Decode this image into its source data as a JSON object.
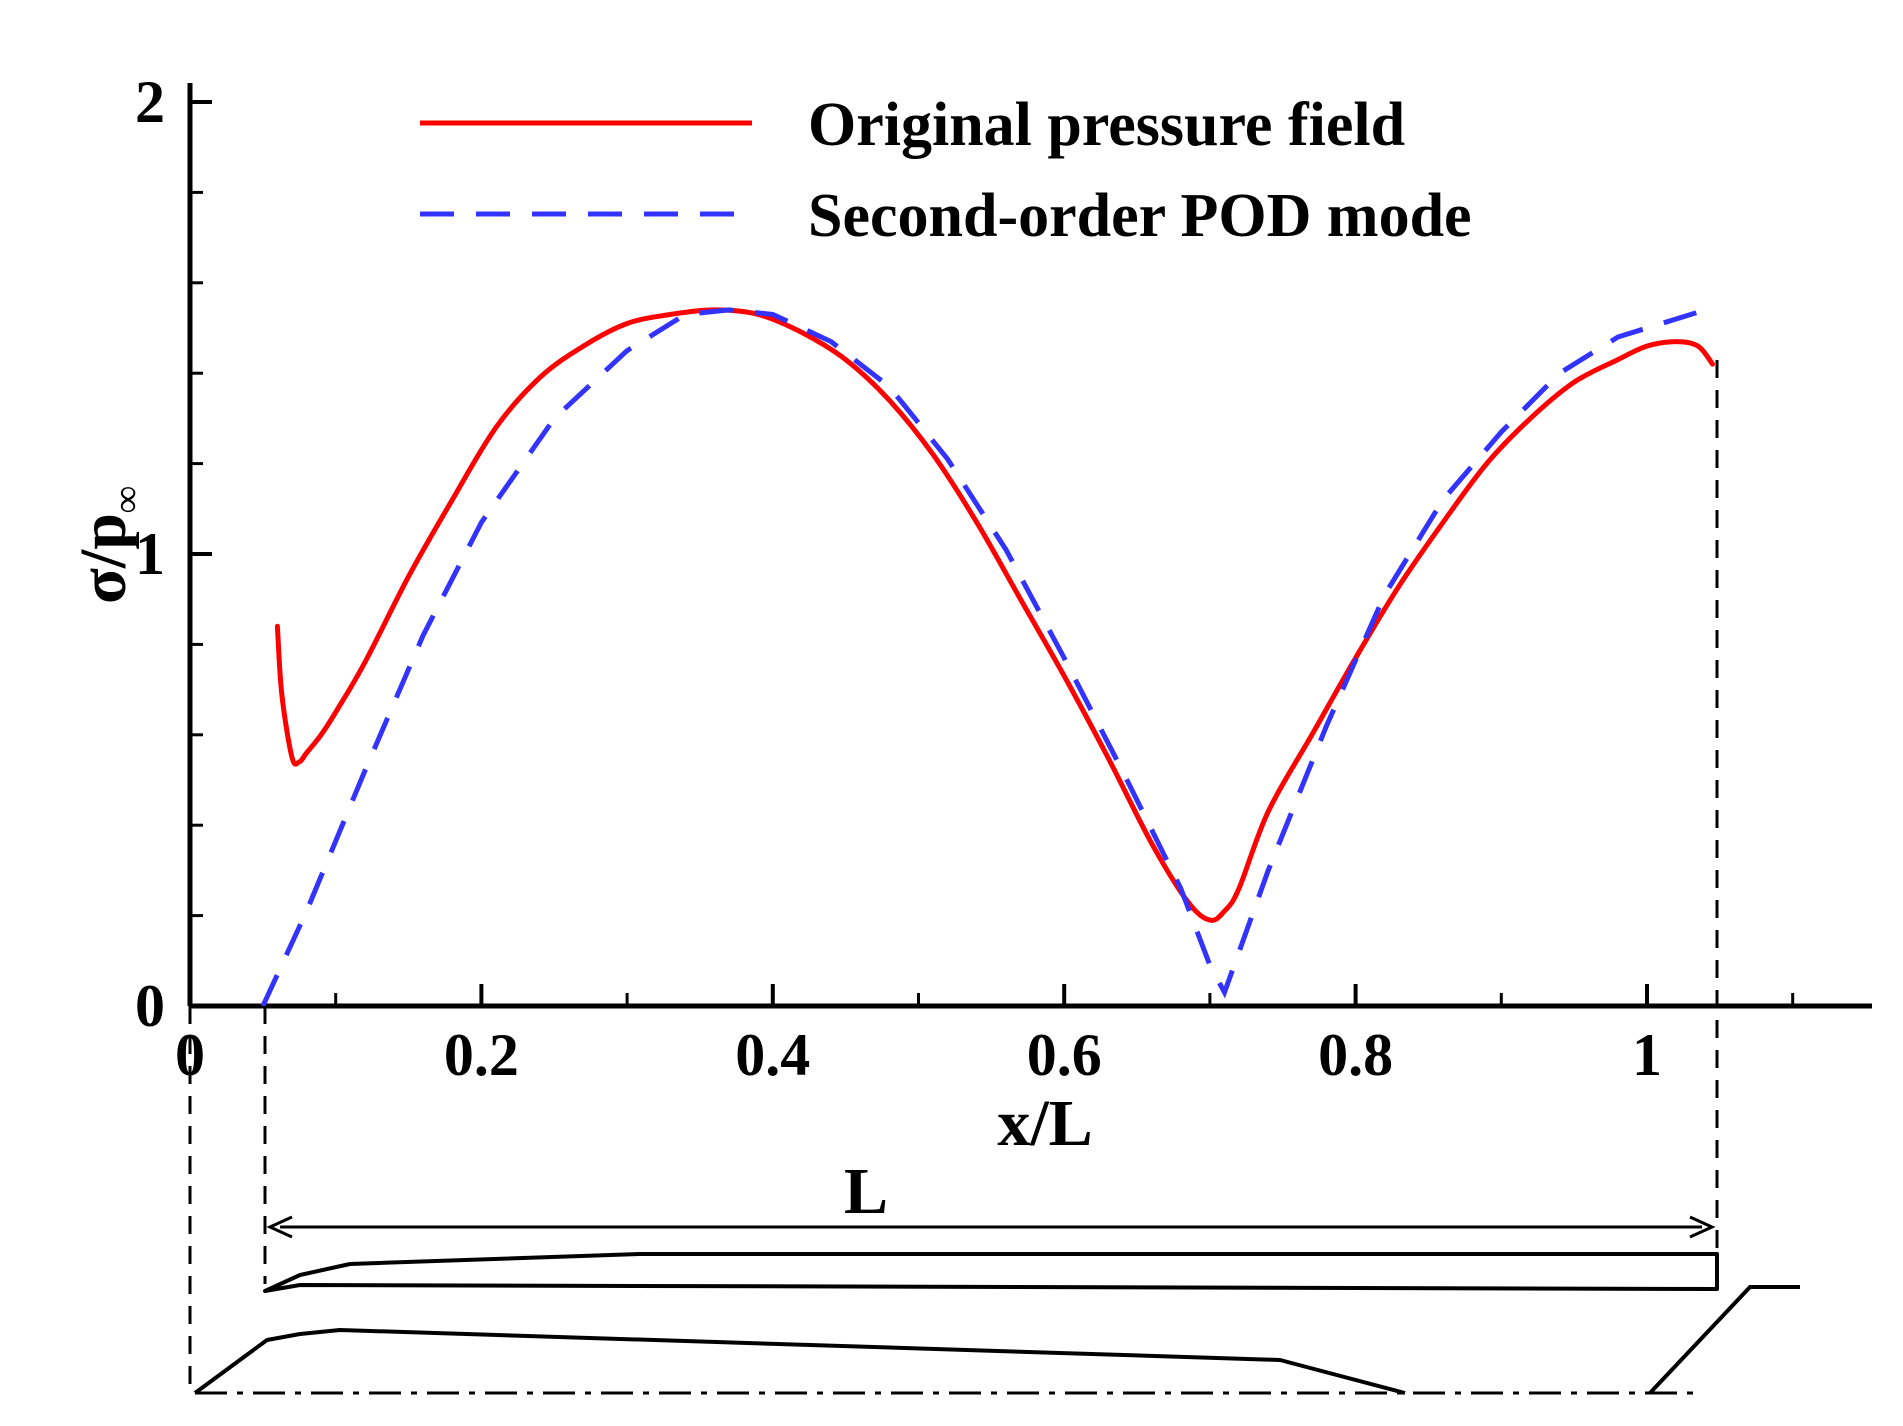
{
  "chart_data": {
    "type": "line",
    "title": "",
    "xlabel": "x/L",
    "ylabel_main": "σ/p",
    "ylabel_sub": "∞",
    "xlim": [
      0,
      1.16
    ],
    "ylim": [
      0,
      2
    ],
    "x_ticks": [
      {
        "value": 0,
        "label": "0"
      },
      {
        "value": 0.2,
        "label": "0.2"
      },
      {
        "value": 0.4,
        "label": "0.4"
      },
      {
        "value": 0.6,
        "label": "0.6"
      },
      {
        "value": 0.8,
        "label": "0.8"
      },
      {
        "value": 1,
        "label": "1"
      }
    ],
    "x_minor_ticks": [
      0.1,
      0.3,
      0.5,
      0.7,
      0.9,
      1.1
    ],
    "y_ticks": [
      {
        "value": 0,
        "label": "0"
      },
      {
        "value": 1,
        "label": "1"
      },
      {
        "value": 2,
        "label": "2"
      }
    ],
    "y_minor_ticks": [
      0.2,
      0.4,
      0.6,
      0.8,
      1.2,
      1.4,
      1.6,
      1.8
    ],
    "legend_position": "top",
    "series": [
      {
        "name": "Original pressure field",
        "color": "#ff0000",
        "style": "solid",
        "x": [
          0.06,
          0.063,
          0.07,
          0.075,
          0.08,
          0.09,
          0.1,
          0.12,
          0.15,
          0.18,
          0.21,
          0.24,
          0.27,
          0.3,
          0.33,
          0.36,
          0.39,
          0.42,
          0.45,
          0.48,
          0.51,
          0.54,
          0.57,
          0.6,
          0.63,
          0.66,
          0.685,
          0.7,
          0.71,
          0.72,
          0.74,
          0.77,
          0.8,
          0.83,
          0.86,
          0.89,
          0.92,
          0.95,
          0.98,
          1.0,
          1.02,
          1.035,
          1.045
        ],
        "y": [
          0.84,
          0.69,
          0.55,
          0.54,
          0.56,
          0.6,
          0.65,
          0.76,
          0.95,
          1.12,
          1.28,
          1.39,
          1.46,
          1.51,
          1.53,
          1.54,
          1.53,
          1.49,
          1.43,
          1.34,
          1.22,
          1.07,
          0.9,
          0.73,
          0.55,
          0.36,
          0.23,
          0.19,
          0.21,
          0.26,
          0.43,
          0.6,
          0.77,
          0.93,
          1.07,
          1.2,
          1.3,
          1.38,
          1.43,
          1.46,
          1.47,
          1.46,
          1.42
        ]
      },
      {
        "name": "Second-order POD mode",
        "color": "#3333ff",
        "style": "dashed",
        "x": [
          0.05,
          0.08,
          0.12,
          0.16,
          0.2,
          0.25,
          0.3,
          0.34,
          0.37,
          0.4,
          0.44,
          0.48,
          0.52,
          0.56,
          0.6,
          0.64,
          0.68,
          0.7,
          0.71,
          0.74,
          0.78,
          0.82,
          0.86,
          0.9,
          0.94,
          0.98,
          1.02,
          1.04
        ],
        "y": [
          0.0,
          0.21,
          0.52,
          0.82,
          1.07,
          1.3,
          1.45,
          1.53,
          1.54,
          1.53,
          1.47,
          1.37,
          1.21,
          1.01,
          0.77,
          0.52,
          0.26,
          0.09,
          0.03,
          0.3,
          0.62,
          0.91,
          1.12,
          1.27,
          1.4,
          1.48,
          1.52,
          1.54
        ]
      }
    ],
    "annotation_label": "L"
  }
}
